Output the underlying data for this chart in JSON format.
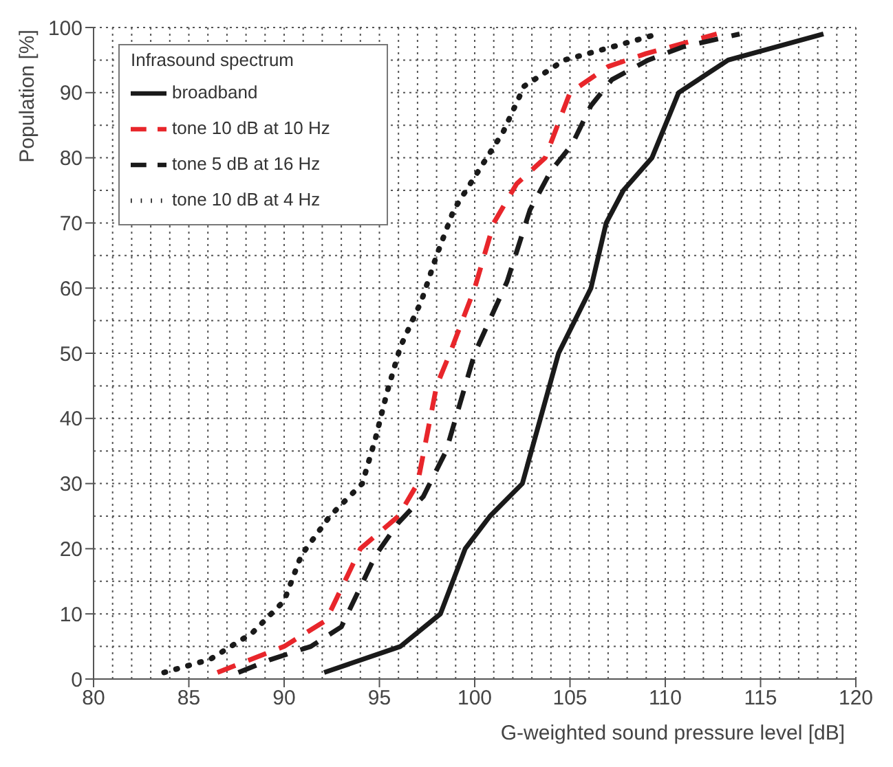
{
  "chart_data": {
    "type": "line",
    "xlabel": "G-weighted sound pressure level [dB]",
    "ylabel": "Population [%]",
    "legend_title": "Infrasound spectrum",
    "legend": "top left",
    "grid": true,
    "xlim": [
      80,
      120
    ],
    "xticks": [
      80,
      85,
      90,
      95,
      100,
      105,
      110,
      115,
      120
    ],
    "ylim": [
      0,
      100
    ],
    "yticks": [
      0,
      10,
      20,
      30,
      40,
      50,
      60,
      70,
      80,
      90,
      100
    ],
    "marker": "none",
    "series": [
      {
        "name": "broadband",
        "color": "#1a1a1a",
        "line_style": "solid",
        "x": [
          92.1,
          96.1,
          98.2,
          99.5,
          100.8,
          102.5,
          104.4,
          106.1,
          106.9,
          107.8,
          109.3,
          110.7,
          113.3,
          118.3
        ],
        "values": [
          1,
          5,
          10,
          20,
          25,
          30,
          50,
          60,
          70,
          75,
          80,
          90,
          95,
          99
        ]
      },
      {
        "name": "tone 10 dB at 10 Hz",
        "color": "#e8262b",
        "line_style": "dashed",
        "x": [
          86.5,
          90,
          92.2,
          94,
          96,
          97,
          98,
          98.7,
          100,
          101,
          102.2,
          103.7,
          105,
          107,
          109,
          112.7
        ],
        "values": [
          1,
          5,
          9,
          20,
          25,
          30,
          45,
          50,
          60,
          70,
          76,
          80,
          90,
          94,
          96,
          99
        ]
      },
      {
        "name": "tone 5 dB at 16 Hz",
        "color": "#1a1a1a",
        "line_style": "dashed",
        "x": [
          87.6,
          89.3,
          91.4,
          93,
          94.8,
          96,
          97.3,
          98.5,
          100,
          101.7,
          102.9,
          104,
          105.1,
          106.1,
          107.2,
          109.1,
          110.9,
          113.9
        ],
        "values": [
          1,
          3,
          5,
          8,
          19,
          24,
          28,
          35,
          50,
          61,
          72,
          78,
          82,
          88,
          92,
          95,
          97,
          99
        ]
      },
      {
        "name": "tone 10 dB at 4 Hz",
        "color": "#1a1a1a",
        "line_style": "dotted",
        "x": [
          83.7,
          86.1,
          88.3,
          90,
          90.9,
          92.4,
          94.1,
          94.8,
          95.4,
          96.1,
          97.2,
          98,
          98.9,
          100.2,
          101.5,
          102.6,
          104.7,
          107.2,
          109.6
        ],
        "values": [
          1,
          3,
          7,
          12,
          19,
          25,
          30,
          37,
          44,
          51,
          58,
          65,
          72,
          78,
          84,
          91,
          95,
          97,
          99
        ]
      }
    ]
  }
}
